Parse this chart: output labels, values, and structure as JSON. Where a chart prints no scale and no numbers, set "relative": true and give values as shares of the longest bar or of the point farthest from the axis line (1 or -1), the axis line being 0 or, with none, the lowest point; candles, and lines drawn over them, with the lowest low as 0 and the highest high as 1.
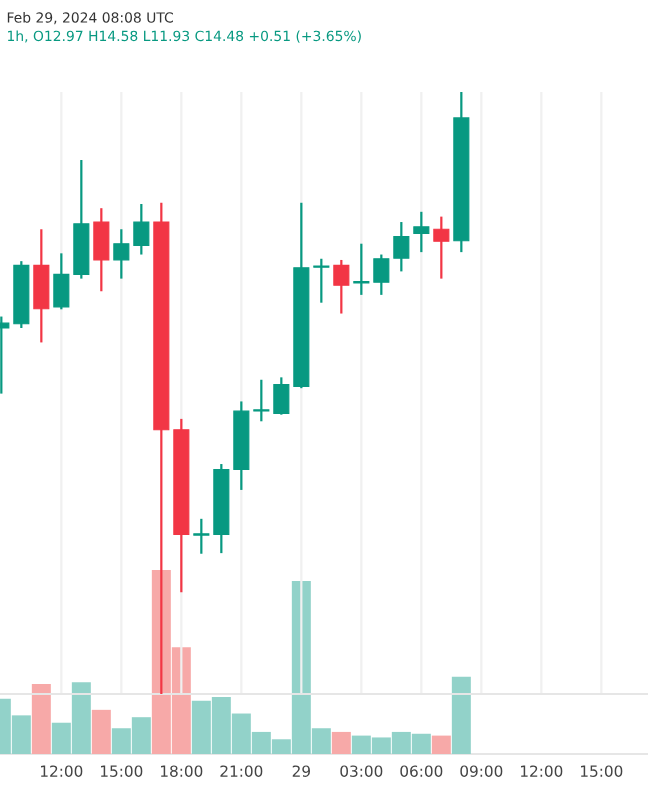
{
  "chart_data": [
    {
      "type": "candlestick",
      "title": "Feb 29, 2024 08:08 UTC",
      "subtitle": "1h, O12.97 H14.58 L11.93 C14.48 +0.51 (+3.65%)",
      "relative": true,
      "grid": "x",
      "tick_labels": false,
      "x": [
        "2024-02-28T09:00",
        "2024-02-28T10:00",
        "2024-02-28T11:00",
        "2024-02-28T12:00",
        "2024-02-28T13:00",
        "2024-02-28T14:00",
        "2024-02-28T15:00",
        "2024-02-28T16:00",
        "2024-02-28T17:00",
        "2024-02-28T18:00",
        "2024-02-28T19:00",
        "2024-02-28T20:00",
        "2024-02-28T21:00",
        "2024-02-28T22:00",
        "2024-02-28T23:00",
        "2024-02-29T00:00",
        "2024-02-29T01:00",
        "2024-02-29T02:00",
        "2024-02-29T03:00",
        "2024-02-29T04:00",
        "2024-02-29T05:00",
        "2024-02-29T06:00",
        "2024-02-29T07:00",
        "2024-02-29T08:00"
      ],
      "xlim": [
        "2024-02-28T08:56",
        "2024-02-29T17:20"
      ],
      "xticks": [
        {
          "value": "2024-02-28T12:00",
          "label": null
        },
        {
          "value": "2024-02-28T15:00",
          "label": null
        },
        {
          "value": "2024-02-28T18:00",
          "label": null
        },
        {
          "value": "2024-02-28T21:00",
          "label": null
        },
        {
          "value": "2024-02-29T00:00",
          "label": null
        },
        {
          "value": "2024-02-29T03:00",
          "label": null
        },
        {
          "value": "2024-02-29T06:00",
          "label": null
        },
        {
          "value": "2024-02-29T09:00",
          "label": null
        },
        {
          "value": "2024-02-29T12:00",
          "label": null
        },
        {
          "value": "2024-02-29T15:00",
          "label": null
        }
      ],
      "colors": [
        "#089981",
        "#089981",
        "#f23645",
        "#089981",
        "#089981",
        "#f23645",
        "#089981",
        "#089981",
        "#f23645",
        "#f23645",
        "#089981",
        "#089981",
        "#089981",
        "#089981",
        "#089981",
        "#089981",
        "#089981",
        "#f23645",
        "#089981",
        "#089981",
        "#089981",
        "#089981",
        "#f23645",
        "#089981"
      ],
      "ohlc": [
        [
          0.608,
          0.627,
          0.499,
          0.616
        ],
        [
          0.615,
          0.719,
          0.608,
          0.712
        ],
        [
          0.712,
          0.772,
          0.584,
          0.64
        ],
        [
          0.643,
          0.732,
          0.639,
          0.697
        ],
        [
          0.697,
          0.887,
          0.69,
          0.781
        ],
        [
          0.784,
          0.807,
          0.669,
          0.721
        ],
        [
          0.721,
          0.772,
          0.69,
          0.748
        ],
        [
          0.745,
          0.814,
          0.73,
          0.784
        ],
        [
          0.784,
          0.816,
          0.0,
          0.439
        ],
        [
          0.439,
          0.457,
          0.169,
          0.265
        ],
        [
          0.264,
          0.291,
          0.233,
          0.266
        ],
        [
          0.265,
          0.382,
          0.234,
          0.373
        ],
        [
          0.373,
          0.486,
          0.339,
          0.47
        ],
        [
          0.47,
          0.522,
          0.453,
          0.472
        ],
        [
          0.466,
          0.526,
          0.464,
          0.514
        ],
        [
          0.511,
          0.816,
          0.508,
          0.708
        ],
        [
          0.709,
          0.723,
          0.65,
          0.711
        ],
        [
          0.712,
          0.721,
          0.632,
          0.679
        ],
        [
          0.683,
          0.748,
          0.663,
          0.685
        ],
        [
          0.684,
          0.73,
          0.663,
          0.723
        ],
        [
          0.724,
          0.784,
          0.702,
          0.76
        ],
        [
          0.765,
          0.801,
          0.734,
          0.776
        ],
        [
          0.772,
          0.793,
          0.69,
          0.752
        ],
        [
          0.753,
          1.0,
          0.734,
          0.957
        ]
      ]
    },
    {
      "type": "bar",
      "relative": true,
      "tick_labels": "x",
      "x": [
        "2024-02-28T09:00",
        "2024-02-28T10:00",
        "2024-02-28T11:00",
        "2024-02-28T12:00",
        "2024-02-28T13:00",
        "2024-02-28T14:00",
        "2024-02-28T15:00",
        "2024-02-28T16:00",
        "2024-02-28T17:00",
        "2024-02-28T18:00",
        "2024-02-28T19:00",
        "2024-02-28T20:00",
        "2024-02-28T21:00",
        "2024-02-28T22:00",
        "2024-02-28T23:00",
        "2024-02-29T00:00",
        "2024-02-29T01:00",
        "2024-02-29T02:00",
        "2024-02-29T03:00",
        "2024-02-29T04:00",
        "2024-02-29T05:00",
        "2024-02-29T06:00",
        "2024-02-29T07:00",
        "2024-02-29T08:00"
      ],
      "xlim": [
        "2024-02-28T08:56",
        "2024-02-29T17:20"
      ],
      "xticks": [
        {
          "value": "2024-02-28T12:00",
          "label": "12:00"
        },
        {
          "value": "2024-02-28T15:00",
          "label": "15:00"
        },
        {
          "value": "2024-02-28T18:00",
          "label": "18:00"
        },
        {
          "value": "2024-02-28T21:00",
          "label": "21:00"
        },
        {
          "value": "2024-02-29T00:00",
          "label": "29"
        },
        {
          "value": "2024-02-29T03:00",
          "label": "03:00"
        },
        {
          "value": "2024-02-29T06:00",
          "label": "06:00"
        },
        {
          "value": "2024-02-29T09:00",
          "label": "09:00"
        },
        {
          "value": "2024-02-29T12:00",
          "label": "12:00"
        },
        {
          "value": "2024-02-29T15:00",
          "label": "15:00"
        }
      ],
      "series": [
        {
          "values": [
            0.3,
            0.21,
            0.38,
            0.17,
            0.39,
            0.24,
            0.14,
            0.2,
            1,
            0.58,
            0.29,
            0.31,
            0.22,
            0.12,
            0.08,
            0.94,
            0.14,
            0.12,
            0.1,
            0.09,
            0.12,
            0.11,
            0.1,
            0.42
          ],
          "colors": [
            "#92d2c9",
            "#92d2c9",
            "#f7a9a8",
            "#92d2c9",
            "#92d2c9",
            "#f7a9a8",
            "#92d2c9",
            "#92d2c9",
            "#f7a9a8",
            "#f7a9a8",
            "#92d2c9",
            "#92d2c9",
            "#92d2c9",
            "#92d2c9",
            "#92d2c9",
            "#92d2c9",
            "#92d2c9",
            "#f7a9a8",
            "#92d2c9",
            "#92d2c9",
            "#92d2c9",
            "#92d2c9",
            "#f7a9a8",
            "#92d2c9"
          ]
        }
      ]
    }
  ]
}
